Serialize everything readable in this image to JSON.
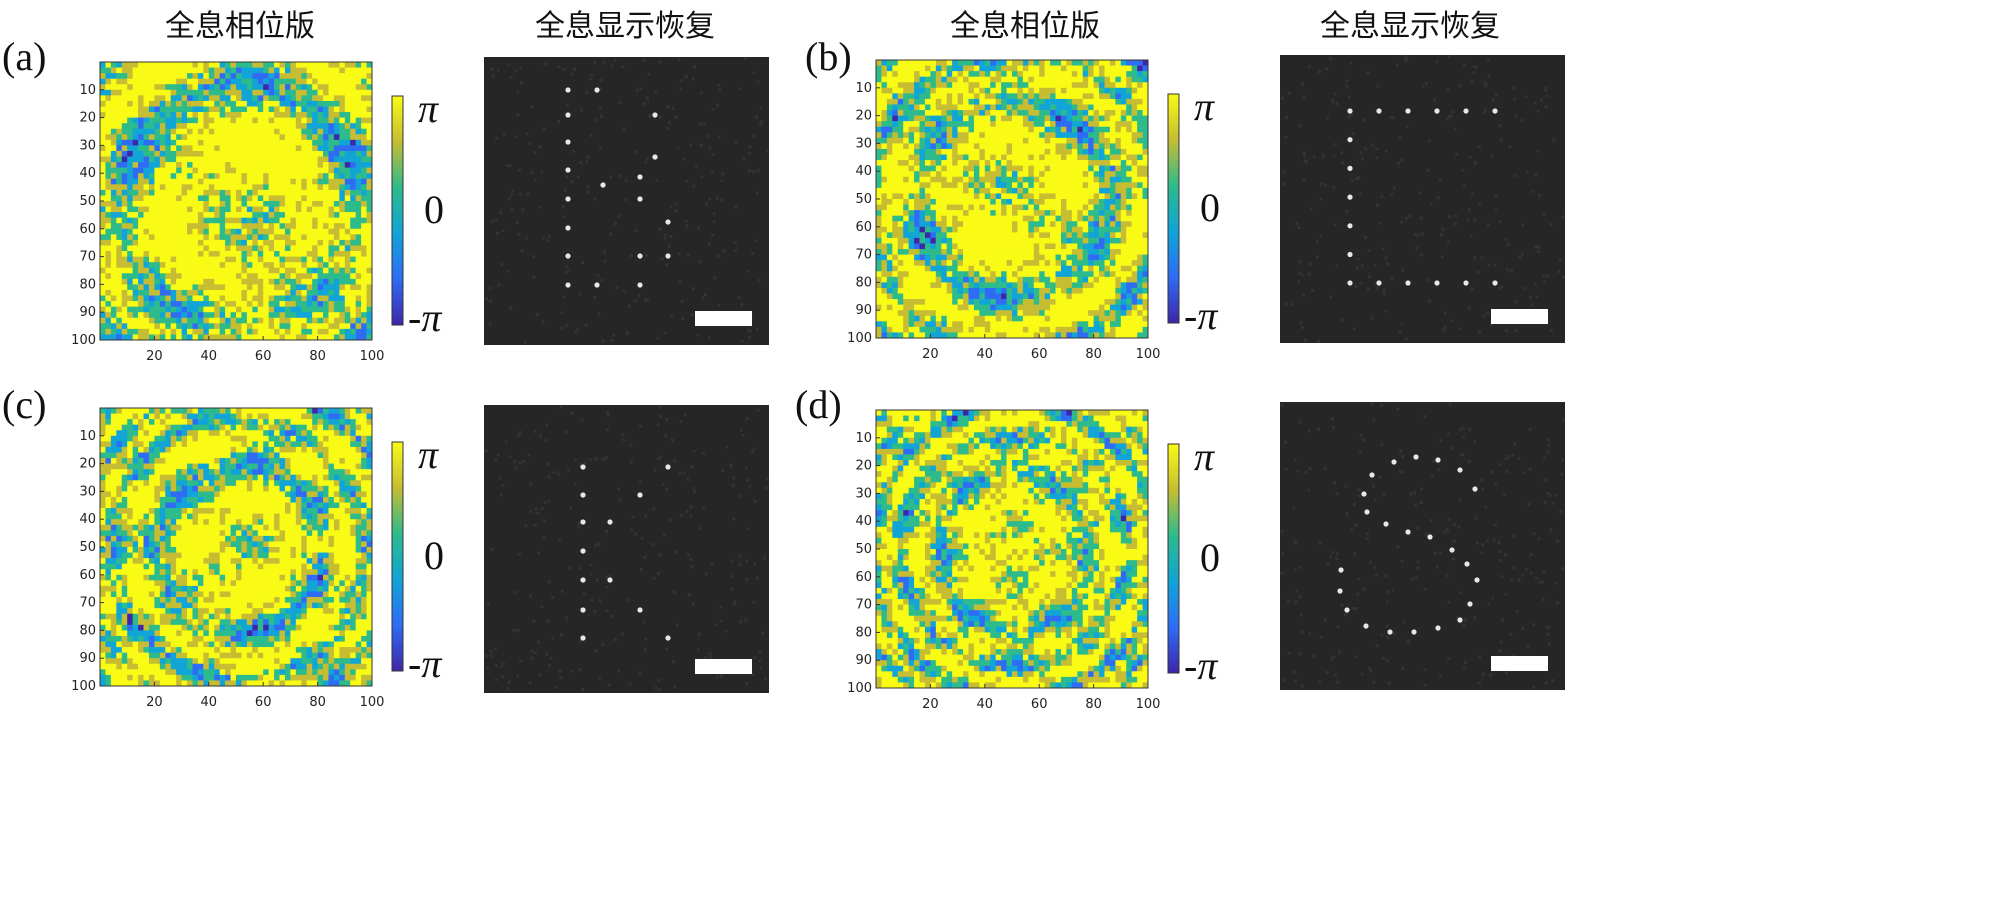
{
  "panels": [
    {
      "label": "(a)",
      "phase_title": "全息相位版",
      "recon_title": "全息显示恢复",
      "yticks": [
        10,
        20,
        30,
        40,
        50,
        60,
        70,
        80,
        90,
        100
      ],
      "xticks": [
        20,
        40,
        60,
        80,
        100
      ],
      "colorbar": [
        "π",
        "0",
        "-π"
      ]
    },
    {
      "label": "(b)",
      "phase_title": "全息相位版",
      "recon_title": "全息显示恢复",
      "yticks": [
        10,
        20,
        30,
        40,
        50,
        60,
        70,
        80,
        90,
        100
      ],
      "xticks": [
        20,
        40,
        60,
        80,
        100
      ],
      "colorbar": [
        "π",
        "0",
        "-π"
      ]
    },
    {
      "label": "(c)",
      "yticks": [
        10,
        20,
        30,
        40,
        50,
        60,
        70,
        80,
        90,
        100
      ],
      "xticks": [
        20,
        40,
        60,
        80,
        100
      ],
      "colorbar": [
        "π",
        "0",
        "-π"
      ]
    },
    {
      "label": "(d)",
      "yticks": [
        10,
        20,
        30,
        40,
        50,
        60,
        70,
        80,
        90,
        100
      ],
      "xticks": [
        20,
        40,
        60,
        80,
        100
      ],
      "colorbar": [
        "π",
        "0",
        "-π"
      ]
    }
  ]
}
